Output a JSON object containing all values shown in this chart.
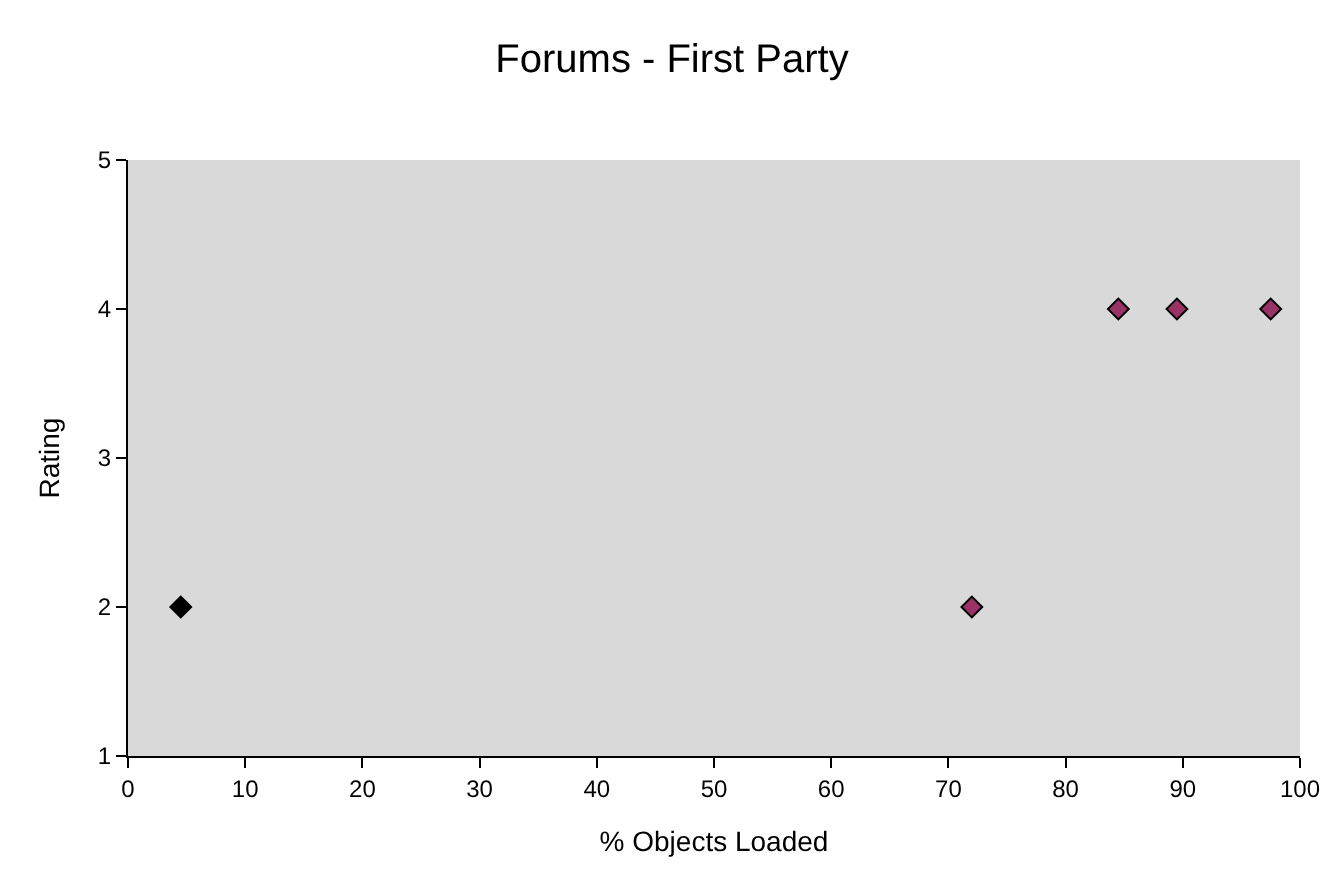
{
  "chart_data": {
    "type": "scatter",
    "title": "Forums - First Party",
    "xlabel": "% Objects Loaded",
    "ylabel": "Rating",
    "series": [
      {
        "color": "#000000",
        "x": [
          4.5
        ],
        "values": [
          2
        ]
      },
      {
        "color": "#993366",
        "x": [
          72,
          84.5,
          89.5,
          97.5
        ],
        "values": [
          2,
          4,
          4,
          4
        ]
      }
    ],
    "xlim": [
      0,
      100
    ],
    "xticks": [
      0,
      10,
      20,
      30,
      40,
      50,
      60,
      70,
      80,
      90,
      100
    ],
    "ylim": [
      1,
      5
    ],
    "yticks": [
      1,
      2,
      3,
      4,
      5
    ],
    "grid": false,
    "marker": "diamond"
  }
}
